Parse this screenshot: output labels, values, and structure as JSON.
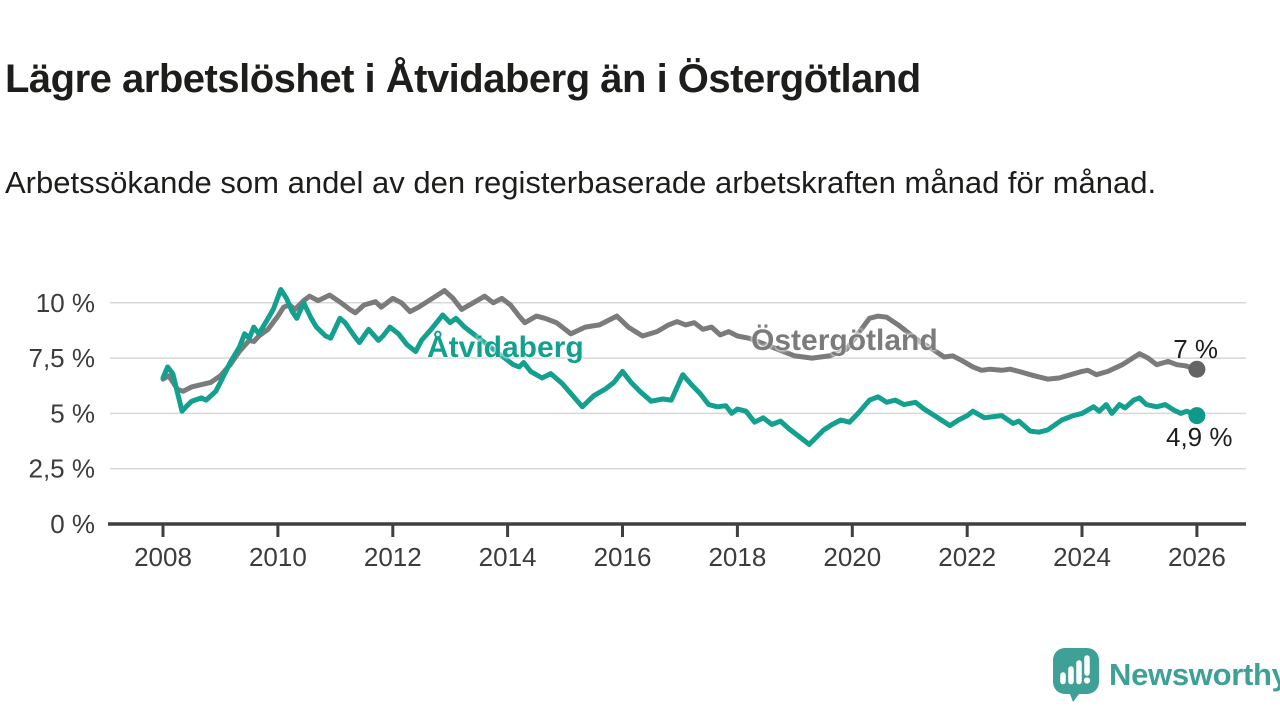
{
  "header": {
    "title": "Lägre arbetslöshet i Åtvidaberg än i Östergötland",
    "subtitle": "Arbetssökande som andel av den registerbaserade arbetskraften månad för månad."
  },
  "chart_data": {
    "type": "line",
    "unit": "%",
    "grid": true,
    "x_axis": {
      "range": [
        2007.1,
        2026.9
      ],
      "ticks": [
        2008,
        2010,
        2012,
        2014,
        2016,
        2018,
        2020,
        2022,
        2024,
        2026
      ]
    },
    "y_axis": {
      "range": [
        0,
        11
      ],
      "ticks": [
        {
          "value": 0,
          "label": "0 %"
        },
        {
          "value": 2.5,
          "label": "2,5 %"
        },
        {
          "value": 5,
          "label": "5 %"
        },
        {
          "value": 7.5,
          "label": "7,5 %"
        },
        {
          "value": 10,
          "label": "10 %"
        }
      ]
    },
    "style": {
      "grid_color": "#d8d8d8",
      "axis_color": "#3f3f3f",
      "tick_text_color": "#3c3c3c",
      "line_width": 5
    },
    "series": [
      {
        "name": "Åtvidaberg",
        "color": "#14a08f",
        "marker_color": "#0d9a8b",
        "end_label": "4,9 %",
        "end_value": 4.9,
        "points": [
          [
            2008.0,
            6.6
          ],
          [
            2008.08,
            7.1
          ],
          [
            2008.17,
            6.8
          ],
          [
            2008.33,
            5.1
          ],
          [
            2008.42,
            5.35
          ],
          [
            2008.5,
            5.55
          ],
          [
            2008.67,
            5.7
          ],
          [
            2008.75,
            5.6
          ],
          [
            2008.92,
            6.0
          ],
          [
            2009.0,
            6.4
          ],
          [
            2009.17,
            7.3
          ],
          [
            2009.33,
            8.0
          ],
          [
            2009.42,
            8.6
          ],
          [
            2009.5,
            8.4
          ],
          [
            2009.58,
            8.9
          ],
          [
            2009.67,
            8.6
          ],
          [
            2009.83,
            9.3
          ],
          [
            2009.92,
            9.7
          ],
          [
            2010.05,
            10.6
          ],
          [
            2010.15,
            10.2
          ],
          [
            2010.25,
            9.6
          ],
          [
            2010.33,
            9.3
          ],
          [
            2010.45,
            10.0
          ],
          [
            2010.58,
            9.3
          ],
          [
            2010.67,
            8.9
          ],
          [
            2010.83,
            8.5
          ],
          [
            2010.92,
            8.4
          ],
          [
            2011.08,
            9.3
          ],
          [
            2011.17,
            9.1
          ],
          [
            2011.33,
            8.5
          ],
          [
            2011.42,
            8.2
          ],
          [
            2011.58,
            8.8
          ],
          [
            2011.75,
            8.3
          ],
          [
            2011.83,
            8.5
          ],
          [
            2011.95,
            8.9
          ],
          [
            2012.1,
            8.6
          ],
          [
            2012.25,
            8.1
          ],
          [
            2012.4,
            7.8
          ],
          [
            2012.5,
            8.3
          ],
          [
            2012.67,
            8.8
          ],
          [
            2012.87,
            9.45
          ],
          [
            2013.0,
            9.1
          ],
          [
            2013.1,
            9.3
          ],
          [
            2013.25,
            8.9
          ],
          [
            2013.5,
            8.4
          ],
          [
            2013.75,
            7.9
          ],
          [
            2014.0,
            7.4
          ],
          [
            2014.1,
            7.2
          ],
          [
            2014.2,
            7.1
          ],
          [
            2014.28,
            7.3
          ],
          [
            2014.4,
            6.9
          ],
          [
            2014.6,
            6.6
          ],
          [
            2014.75,
            6.8
          ],
          [
            2014.95,
            6.35
          ],
          [
            2015.2,
            5.6
          ],
          [
            2015.3,
            5.3
          ],
          [
            2015.5,
            5.8
          ],
          [
            2015.7,
            6.1
          ],
          [
            2015.85,
            6.4
          ],
          [
            2016.0,
            6.9
          ],
          [
            2016.15,
            6.4
          ],
          [
            2016.3,
            6.0
          ],
          [
            2016.5,
            5.55
          ],
          [
            2016.7,
            5.65
          ],
          [
            2016.85,
            5.6
          ],
          [
            2017.05,
            6.75
          ],
          [
            2017.2,
            6.3
          ],
          [
            2017.35,
            5.9
          ],
          [
            2017.5,
            5.4
          ],
          [
            2017.65,
            5.3
          ],
          [
            2017.8,
            5.35
          ],
          [
            2017.9,
            5.0
          ],
          [
            2018.0,
            5.2
          ],
          [
            2018.15,
            5.1
          ],
          [
            2018.3,
            4.6
          ],
          [
            2018.45,
            4.8
          ],
          [
            2018.6,
            4.5
          ],
          [
            2018.75,
            4.65
          ],
          [
            2018.9,
            4.3
          ],
          [
            2019.05,
            4.0
          ],
          [
            2019.25,
            3.6
          ],
          [
            2019.5,
            4.25
          ],
          [
            2019.65,
            4.5
          ],
          [
            2019.8,
            4.7
          ],
          [
            2019.95,
            4.6
          ],
          [
            2020.1,
            5.0
          ],
          [
            2020.3,
            5.6
          ],
          [
            2020.45,
            5.75
          ],
          [
            2020.6,
            5.5
          ],
          [
            2020.75,
            5.6
          ],
          [
            2020.9,
            5.4
          ],
          [
            2021.1,
            5.5
          ],
          [
            2021.25,
            5.2
          ],
          [
            2021.4,
            4.95
          ],
          [
            2021.55,
            4.7
          ],
          [
            2021.7,
            4.45
          ],
          [
            2021.85,
            4.7
          ],
          [
            2022.0,
            4.9
          ],
          [
            2022.1,
            5.1
          ],
          [
            2022.3,
            4.8
          ],
          [
            2022.45,
            4.85
          ],
          [
            2022.6,
            4.9
          ],
          [
            2022.8,
            4.55
          ],
          [
            2022.9,
            4.65
          ],
          [
            2023.1,
            4.2
          ],
          [
            2023.25,
            4.15
          ],
          [
            2023.4,
            4.25
          ],
          [
            2023.65,
            4.7
          ],
          [
            2023.85,
            4.9
          ],
          [
            2024.0,
            5.0
          ],
          [
            2024.2,
            5.3
          ],
          [
            2024.3,
            5.1
          ],
          [
            2024.42,
            5.4
          ],
          [
            2024.52,
            5.0
          ],
          [
            2024.65,
            5.4
          ],
          [
            2024.75,
            5.25
          ],
          [
            2024.9,
            5.6
          ],
          [
            2025.0,
            5.7
          ],
          [
            2025.12,
            5.4
          ],
          [
            2025.3,
            5.3
          ],
          [
            2025.45,
            5.4
          ],
          [
            2025.6,
            5.15
          ],
          [
            2025.72,
            5.0
          ],
          [
            2025.82,
            5.1
          ],
          [
            2026.0,
            4.9
          ]
        ]
      },
      {
        "name": "Östergötland",
        "color": "#7b7b7b",
        "marker_color": "#646464",
        "end_label": "7 %",
        "end_value": 7.0,
        "points": [
          [
            2008.0,
            6.55
          ],
          [
            2008.1,
            6.7
          ],
          [
            2008.25,
            6.1
          ],
          [
            2008.35,
            6.0
          ],
          [
            2008.5,
            6.2
          ],
          [
            2008.67,
            6.3
          ],
          [
            2008.83,
            6.4
          ],
          [
            2009.0,
            6.7
          ],
          [
            2009.17,
            7.2
          ],
          [
            2009.33,
            7.8
          ],
          [
            2009.5,
            8.3
          ],
          [
            2009.58,
            8.25
          ],
          [
            2009.67,
            8.5
          ],
          [
            2009.83,
            8.8
          ],
          [
            2010.0,
            9.4
          ],
          [
            2010.1,
            9.8
          ],
          [
            2010.2,
            9.9
          ],
          [
            2010.3,
            9.7
          ],
          [
            2010.45,
            10.1
          ],
          [
            2010.55,
            10.3
          ],
          [
            2010.7,
            10.1
          ],
          [
            2010.9,
            10.35
          ],
          [
            2011.1,
            10.0
          ],
          [
            2011.25,
            9.7
          ],
          [
            2011.35,
            9.55
          ],
          [
            2011.5,
            9.9
          ],
          [
            2011.7,
            10.05
          ],
          [
            2011.8,
            9.8
          ],
          [
            2012.0,
            10.2
          ],
          [
            2012.15,
            10.0
          ],
          [
            2012.3,
            9.6
          ],
          [
            2012.45,
            9.8
          ],
          [
            2012.6,
            10.05
          ],
          [
            2012.75,
            10.3
          ],
          [
            2012.9,
            10.55
          ],
          [
            2013.05,
            10.2
          ],
          [
            2013.2,
            9.7
          ],
          [
            2013.4,
            10.0
          ],
          [
            2013.6,
            10.3
          ],
          [
            2013.75,
            10.0
          ],
          [
            2013.9,
            10.2
          ],
          [
            2014.05,
            9.9
          ],
          [
            2014.2,
            9.4
          ],
          [
            2014.3,
            9.1
          ],
          [
            2014.5,
            9.4
          ],
          [
            2014.65,
            9.3
          ],
          [
            2014.85,
            9.1
          ],
          [
            2015.0,
            8.8
          ],
          [
            2015.1,
            8.6
          ],
          [
            2015.35,
            8.9
          ],
          [
            2015.6,
            9.0
          ],
          [
            2015.9,
            9.4
          ],
          [
            2016.1,
            8.9
          ],
          [
            2016.35,
            8.5
          ],
          [
            2016.6,
            8.7
          ],
          [
            2016.8,
            9.0
          ],
          [
            2016.95,
            9.15
          ],
          [
            2017.1,
            9.0
          ],
          [
            2017.25,
            9.1
          ],
          [
            2017.4,
            8.8
          ],
          [
            2017.55,
            8.9
          ],
          [
            2017.7,
            8.55
          ],
          [
            2017.85,
            8.7
          ],
          [
            2018.0,
            8.5
          ],
          [
            2018.2,
            8.4
          ],
          [
            2018.4,
            8.2
          ],
          [
            2018.6,
            8.0
          ],
          [
            2018.8,
            7.8
          ],
          [
            2019.0,
            7.6
          ],
          [
            2019.3,
            7.5
          ],
          [
            2019.6,
            7.6
          ],
          [
            2019.9,
            7.9
          ],
          [
            2020.1,
            8.6
          ],
          [
            2020.3,
            9.3
          ],
          [
            2020.45,
            9.4
          ],
          [
            2020.6,
            9.35
          ],
          [
            2020.8,
            9.0
          ],
          [
            2021.0,
            8.6
          ],
          [
            2021.2,
            8.2
          ],
          [
            2021.4,
            7.9
          ],
          [
            2021.6,
            7.55
          ],
          [
            2021.75,
            7.6
          ],
          [
            2021.9,
            7.4
          ],
          [
            2022.1,
            7.1
          ],
          [
            2022.25,
            6.95
          ],
          [
            2022.4,
            7.0
          ],
          [
            2022.6,
            6.95
          ],
          [
            2022.75,
            7.0
          ],
          [
            2022.9,
            6.9
          ],
          [
            2023.1,
            6.75
          ],
          [
            2023.25,
            6.65
          ],
          [
            2023.4,
            6.55
          ],
          [
            2023.6,
            6.6
          ],
          [
            2023.8,
            6.75
          ],
          [
            2024.0,
            6.9
          ],
          [
            2024.1,
            6.95
          ],
          [
            2024.25,
            6.75
          ],
          [
            2024.45,
            6.9
          ],
          [
            2024.7,
            7.2
          ],
          [
            2024.85,
            7.45
          ],
          [
            2025.0,
            7.7
          ],
          [
            2025.15,
            7.5
          ],
          [
            2025.3,
            7.2
          ],
          [
            2025.5,
            7.35
          ],
          [
            2025.65,
            7.2
          ],
          [
            2025.8,
            7.15
          ],
          [
            2026.0,
            7.0
          ]
        ]
      }
    ]
  },
  "footer": {
    "brand": "Newsworthy",
    "brand_color": "#3fa098",
    "icon": "speech-bubble-bar-chart-icon"
  }
}
